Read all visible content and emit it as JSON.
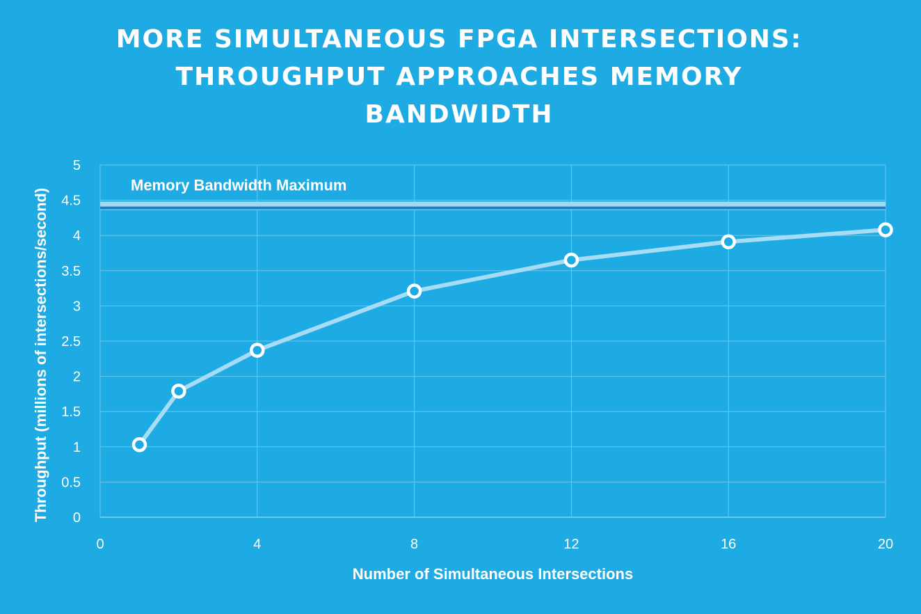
{
  "chart_data": {
    "type": "line",
    "title": "MORE SIMULTANEOUS FPGA INTERSECTIONS: THROUGHPUT APPROACHES MEMORY BANDWIDTH",
    "xlabel": "Number of Simultaneous Intersections",
    "ylabel": "Throughput (millions of intersections/second)",
    "xlim": [
      0,
      20
    ],
    "ylim": [
      0,
      5
    ],
    "x_ticks": [
      "0",
      "4",
      "8",
      "12",
      "16",
      "20"
    ],
    "y_ticks": [
      "0",
      "0.5",
      "1",
      "1.5",
      "2",
      "2.5",
      "3",
      "3.5",
      "4",
      "4.5",
      "5"
    ],
    "grid": true,
    "series": [
      {
        "x": [
          1,
          2,
          4,
          8,
          12,
          16,
          20
        ],
        "y": [
          1.03,
          1.79,
          2.37,
          3.21,
          3.65,
          3.91,
          4.08
        ]
      }
    ],
    "reference_line": {
      "label": "Memory Bandwidth Maximum",
      "y": 4.42
    },
    "colors": {
      "background": "#1eaae2",
      "grid": "#6cc8ee",
      "line": "#a6dcf5",
      "marker_fill": "#1eaae2",
      "marker_stroke": "#ffffff",
      "ref_line_outer": "#9fd9f4",
      "ref_line_inner": "#1d7fc0"
    }
  }
}
